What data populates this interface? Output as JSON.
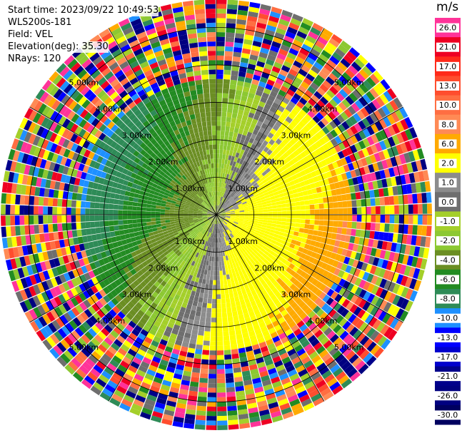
{
  "header": {
    "start_time": "Start time: 2023/09/22 10:49:53",
    "instrument": "WLS200s-181",
    "field": "Field: VEL",
    "elevation": "Elevation(deg): 35.30",
    "nrays": "NRays: 120"
  },
  "colorbar": {
    "unit": "m/s",
    "levels": [
      {
        "label": "26.0",
        "color": "#ff3399"
      },
      {
        "label": "21.0",
        "color": "#ee0022"
      },
      {
        "label": "17.0",
        "color": "#ff2a1a"
      },
      {
        "label": "13.0",
        "color": "#ff4d2e"
      },
      {
        "label": "10.0",
        "color": "#ff6e42"
      },
      {
        "label": "8.0",
        "color": "#ff8a55"
      },
      {
        "label": "6.0",
        "color": "#ffaa00"
      },
      {
        "label": "2.0",
        "color": "#ffff00"
      },
      {
        "label": "1.0",
        "color": "#8c8c8c"
      },
      {
        "label": "0.0",
        "color": "#6e6e6e"
      },
      {
        "label": "-1.0",
        "color": "#a4cf2a"
      },
      {
        "label": "-2.0",
        "color": "#8cc832"
      },
      {
        "label": "-4.0",
        "color": "#6b8e23"
      },
      {
        "label": "-6.0",
        "color": "#228b22"
      },
      {
        "label": "-8.0",
        "color": "#2e8b57"
      },
      {
        "label": "-10.0",
        "color": "#1e90ff"
      },
      {
        "label": "-13.0",
        "color": "#0000ff"
      },
      {
        "label": "-17.0",
        "color": "#0000cd"
      },
      {
        "label": "-21.0",
        "color": "#00008b"
      },
      {
        "label": "-26.0",
        "color": "#000080"
      },
      {
        "label": "-30.0",
        "color": "#000060"
      }
    ]
  },
  "chart_data": {
    "type": "heatmap",
    "field": "VEL",
    "unit": "m/s",
    "nrays": 120,
    "range_rings_km": [
      1.0,
      2.0,
      3.0,
      4.0,
      5.0
    ],
    "ring_labels": [
      "1.00km",
      "2.00km",
      "3.00km",
      "4.00km",
      "5.00km"
    ],
    "max_range_km": 5.75,
    "valid_range_km": 3.65,
    "azimuth_lines_deg": [
      0,
      30,
      60,
      90,
      120,
      150,
      180,
      210,
      240,
      270,
      300,
      330
    ],
    "velocity_pattern": "dipole: receding (positive, yellow-orange) toward east/southeast, approaching (negative, green) toward west/northwest, noise beyond ~3.7 km"
  }
}
